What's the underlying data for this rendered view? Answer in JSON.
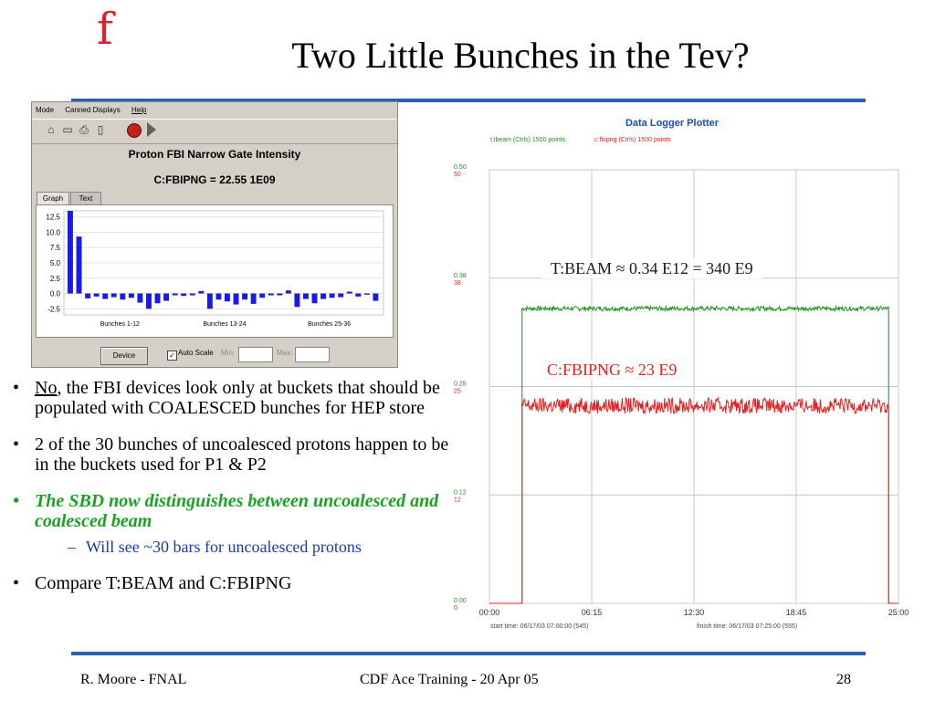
{
  "slide": {
    "logo": "f",
    "title": "Two Little Bunches in the Tev?",
    "footer_left": "R. Moore - FNAL",
    "footer_center": "CDF Ace Training - 20 Apr 05",
    "page_number": "28",
    "accent_color": "#2b5fb3",
    "logo_color": "#d8232a"
  },
  "acnet_panel": {
    "menu": [
      "Mode",
      "Canned Displays",
      "Help"
    ],
    "toolbar_icons": [
      "home-icon",
      "display-icon",
      "print-icon",
      "document-icon",
      "stop-icon",
      "play-icon"
    ],
    "title": "Proton FBI Narrow Gate Intensity",
    "reading": "C:FBIPNG = 22.55  1E09",
    "tabs": [
      "Graph",
      "Text"
    ],
    "device_button": "Device",
    "auto_scale_label": "Auto Scale",
    "auto_scale_checked": true,
    "min_label": "Min:",
    "max_label": "Max:",
    "chart_data": {
      "type": "bar",
      "y_ticks": [
        "12.5",
        "10.0",
        "7.5",
        "5.0",
        "2.5",
        "0.0",
        "-2.5"
      ],
      "ylim": [
        -3.5,
        13.5
      ],
      "x_group_labels": [
        "Bunches 1-12",
        "Bunches 13-24",
        "Bunches 25-36"
      ],
      "values": [
        13.5,
        9.3,
        -0.8,
        -0.5,
        -0.9,
        -0.6,
        -1.0,
        -0.7,
        -1.5,
        -2.5,
        -1.6,
        -1.2,
        -0.3,
        -0.4,
        -0.3,
        0.4,
        -2.5,
        -1.0,
        -1.3,
        -1.8,
        -1.0,
        -1.7,
        -0.7,
        -0.3,
        -0.3,
        0.5,
        -2.2,
        -0.9,
        -1.6,
        -0.9,
        -0.7,
        -0.6,
        0.3,
        -0.5,
        -0.2,
        -1.2
      ],
      "bar_color": "#1a1ae6"
    }
  },
  "bullets": [
    {
      "underline": "No",
      "text": ", the FBI devices look only at buckets that should be populated with COALESCED bunches for HEP store"
    },
    {
      "text": "2 of the 30 bunches of uncoalesced protons happen to be in the buckets used for P1 & P2"
    },
    {
      "text": "The SBD now distinguishes between uncoalesced and coalesced beam",
      "style": "green-italic",
      "sub": "Will see ~30 bars for uncoalesced protons"
    },
    {
      "text": "Compare T:BEAM and C:FBIPNG"
    }
  ],
  "plotter": {
    "title": "Data Logger Plotter",
    "legend": [
      {
        "label": "t:ibeam (Ctrls) 1500 points",
        "color": "#1a8c1a"
      },
      {
        "label": "c:fbipng (Ctrls) 1500 points",
        "color": "#e62020"
      }
    ],
    "y_ticks": [
      {
        "top": "0.50",
        "bottom": "50"
      },
      {
        "top": "0.38",
        "bottom": "38"
      },
      {
        "top": "0.25",
        "bottom": "25"
      },
      {
        "top": "0.12",
        "bottom": "12"
      },
      {
        "top": "0.00",
        "bottom": "0"
      }
    ],
    "x_ticks": [
      "00:00",
      "06:15",
      "12:30",
      "18:45",
      "25:00"
    ],
    "start_time": "start time: 06/17/03 07:00:00 (545)",
    "finish_time": "finish time: 06/17/03 07:25:00 (555)",
    "annotation_beam": "T:BEAM ≈ 0.34 E12 = 340 E9",
    "annotation_fbipng": "C:FBIPNG ≈ 23 E9",
    "chart_data": {
      "type": "line",
      "xlabel": "",
      "ylabel": "",
      "xlim": [
        0,
        25
      ],
      "ylim": [
        0,
        50
      ],
      "series": [
        {
          "name": "t:ibeam (Ctrls) 1500 points",
          "on": 2.0,
          "off": 24.4,
          "level": 34,
          "noise": 0.25,
          "color": "#1a8c1a"
        },
        {
          "name": "c:fbipng (Ctrls) 1500 points",
          "on": 2.0,
          "off": 24.4,
          "level": 22.8,
          "noise": 0.9,
          "color": "#e62020"
        }
      ]
    }
  }
}
